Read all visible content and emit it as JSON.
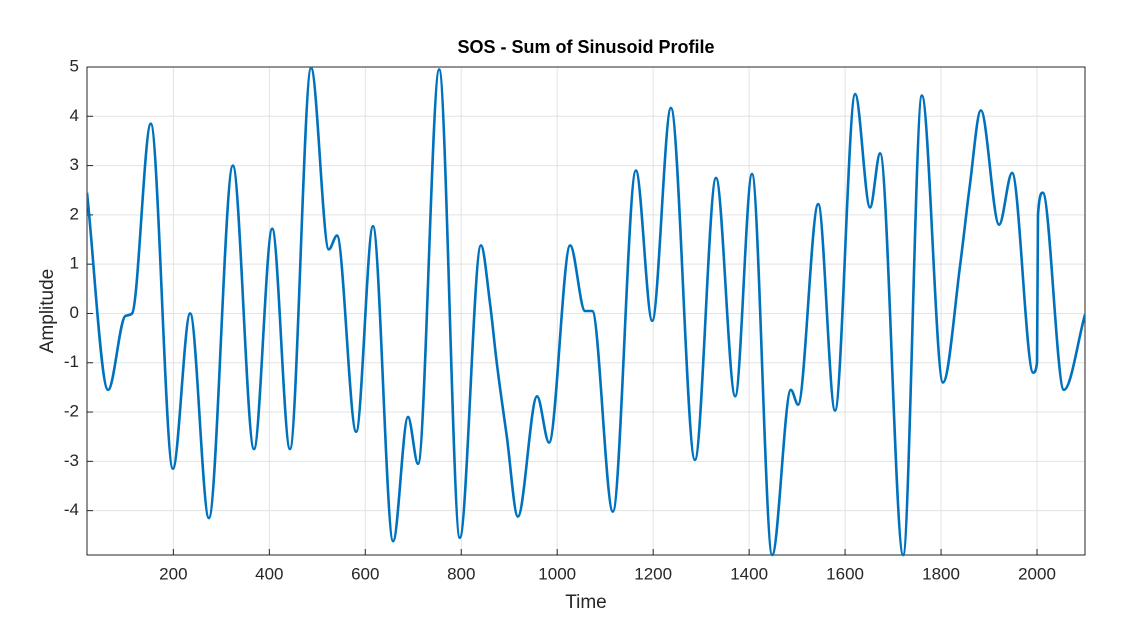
{
  "chart_data": {
    "type": "line",
    "title": "SOS - Sum of Sinusoid Profile",
    "x_label": "Time",
    "y_label": "Amplitude",
    "x": [
      20,
      64,
      100,
      114,
      153,
      199,
      235,
      274,
      324,
      368,
      406,
      443,
      487,
      524,
      541,
      581,
      616,
      658,
      689,
      710,
      754,
      797,
      841,
      860,
      874,
      895,
      918,
      958,
      983,
      1027,
      1058,
      1073,
      1116,
      1164,
      1198,
      1237,
      1287,
      1331,
      1371,
      1406,
      1448,
      1487,
      1502,
      1544,
      1579,
      1621,
      1652,
      1673,
      1721,
      1760,
      1804,
      1840,
      1860,
      1883,
      1921,
      1948,
      1992,
      2000,
      2002,
      2012,
      2056,
      2100
    ],
    "series": [
      {
        "name": "SOS",
        "color": "#0072bd",
        "values": [
          2.45,
          -1.55,
          -0.05,
          0.0,
          3.85,
          -3.15,
          0.0,
          -4.15,
          3.0,
          -2.75,
          1.72,
          -2.75,
          4.98,
          1.3,
          1.58,
          -2.4,
          1.77,
          -4.62,
          -2.1,
          -3.05,
          4.95,
          -4.55,
          1.38,
          0.2,
          -1.0,
          -2.5,
          -4.12,
          -1.68,
          -2.62,
          1.38,
          0.05,
          0.05,
          -4.02,
          2.9,
          -0.15,
          4.17,
          -2.97,
          2.75,
          -1.68,
          2.83,
          -4.9,
          -1.55,
          -1.85,
          2.22,
          -1.97,
          4.45,
          2.15,
          3.25,
          -4.9,
          4.42,
          -1.4,
          1.0,
          2.6,
          4.12,
          1.8,
          2.85,
          -1.2,
          -1.0,
          2.0,
          2.45,
          -1.55,
          -0.02
        ]
      }
    ],
    "xlim": [
      20,
      2100
    ],
    "ylim": [
      -4.9,
      5
    ],
    "xticks": [
      200,
      400,
      600,
      800,
      1000,
      1200,
      1400,
      1600,
      1800,
      2000
    ],
    "yticks": [
      -4,
      -3,
      -2,
      -1,
      0,
      1,
      2,
      3,
      4,
      5
    ],
    "grid": true
  }
}
